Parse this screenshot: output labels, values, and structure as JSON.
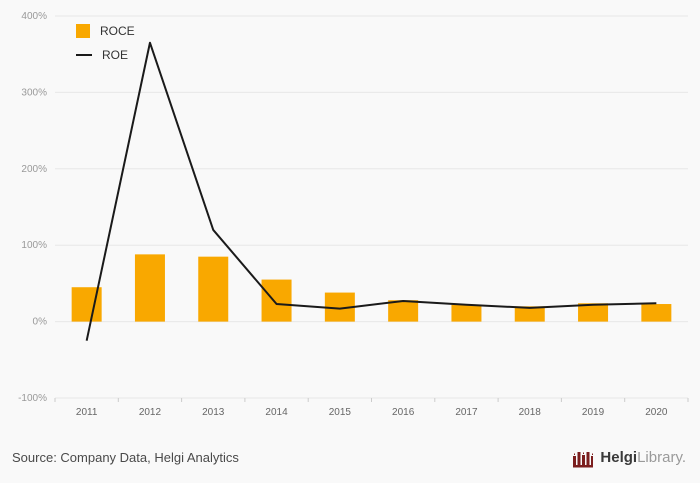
{
  "chart_data": {
    "type": "bar",
    "subtype": "bar+line combo",
    "categories": [
      "2011",
      "2012",
      "2013",
      "2014",
      "2015",
      "2016",
      "2017",
      "2018",
      "2019",
      "2020"
    ],
    "series": [
      {
        "name": "ROCE",
        "type": "bar",
        "color": "#f9a800",
        "values": [
          45,
          88,
          85,
          55,
          38,
          28,
          22,
          20,
          24,
          23
        ]
      },
      {
        "name": "ROE",
        "type": "line",
        "color": "#1a1a1a",
        "values": [
          -25,
          365,
          120,
          23,
          17,
          27,
          22,
          18,
          22,
          24
        ]
      }
    ],
    "title": "",
    "xlabel": "",
    "ylabel": "",
    "ylim": [
      -100,
      400
    ],
    "yticks": [
      400,
      300,
      200,
      100,
      0,
      -100
    ],
    "ytick_suffix": "%",
    "grid": true,
    "legend_position": "top-left"
  },
  "legend": {
    "roce_label": "ROCE",
    "roe_label": "ROE"
  },
  "footer": {
    "source": "Source: Company Data, Helgi Analytics",
    "logo_bold": "Helgi",
    "logo_light": "Library."
  },
  "colors": {
    "background": "#f9f9f9",
    "gridline": "#e7e7e7",
    "bar": "#f9a800",
    "line": "#1a1a1a",
    "y_tick_label": "#999999",
    "x_tick_label": "#666666",
    "logo_icon": "#7b1e1e"
  }
}
